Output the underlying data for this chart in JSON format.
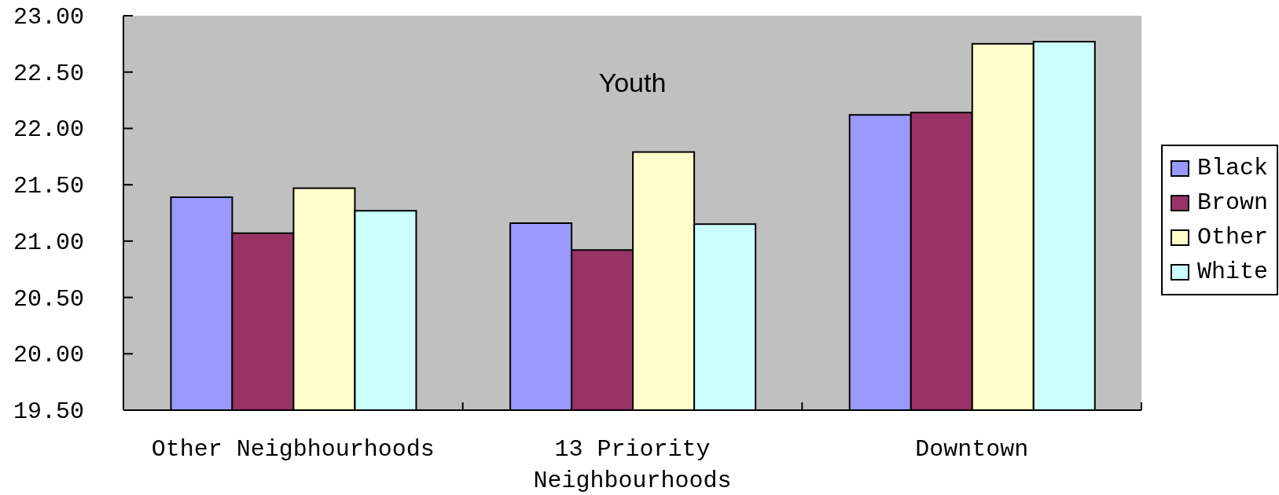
{
  "chart_data": {
    "type": "bar",
    "title": "Youth",
    "categories": [
      "Other Neigbhourhoods",
      "13 Priority Neighbourhoods",
      "Downtown"
    ],
    "series": [
      {
        "name": "Black",
        "color": "#9999ff",
        "values": [
          21.39,
          21.16,
          22.12
        ]
      },
      {
        "name": "Brown",
        "color": "#993366",
        "values": [
          21.07,
          20.92,
          22.14
        ]
      },
      {
        "name": "Other",
        "color": "#ffffcc",
        "values": [
          21.47,
          21.79,
          22.75
        ]
      },
      {
        "name": "White",
        "color": "#ccffff",
        "values": [
          21.27,
          21.15,
          22.77
        ]
      }
    ],
    "ylim": [
      19.5,
      23
    ],
    "yticks": [
      {
        "value": 19.5,
        "label": "19.50"
      },
      {
        "value": 20,
        "label": "20.00"
      },
      {
        "value": 20.5,
        "label": "20.50"
      },
      {
        "value": 21,
        "label": "21.00"
      },
      {
        "value": 21.5,
        "label": "21.50"
      },
      {
        "value": 22,
        "label": "22.00"
      },
      {
        "value": 22.5,
        "label": "22.50"
      },
      {
        "value": 23,
        "label": "23.00"
      }
    ],
    "legend": "right"
  }
}
